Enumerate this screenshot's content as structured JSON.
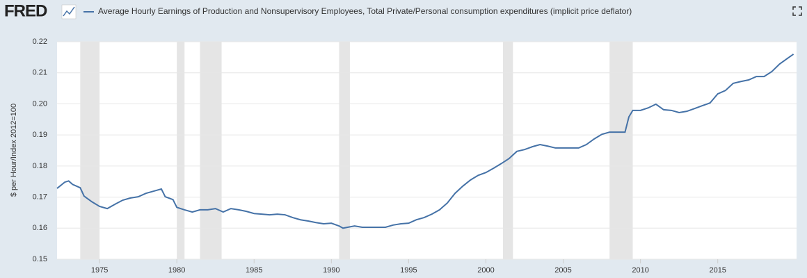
{
  "logo": "FRED",
  "chart_data": {
    "type": "line",
    "title": "Average Hourly Earnings of Production and Nonsupervisory Employees, Total Private/Personal consumption expenditures (implicit price deflator)",
    "ylabel": "$ per Hour/Index 2012=100",
    "xlim": [
      1972.25,
      2020.1
    ],
    "ylim": [
      0.15,
      0.22
    ],
    "xticks": [
      1975,
      1980,
      1985,
      1990,
      1995,
      2000,
      2005,
      2010,
      2015
    ],
    "yticks": [
      0.15,
      0.16,
      0.17,
      0.18,
      0.19,
      {
        "value": 0.2,
        "label": "0.20"
      },
      0.21,
      0.22
    ],
    "grid": true,
    "recession_color": "#e5e5e5",
    "recessions": [
      [
        1973.75,
        1975.0
      ],
      [
        1980.0,
        1980.5
      ],
      [
        1981.5,
        1982.9
      ],
      [
        1990.5,
        1991.2
      ],
      [
        2001.1,
        2001.75
      ],
      [
        2008.0,
        2009.5
      ]
    ],
    "series": [
      {
        "name": "Average Hourly Earnings of Production and Nonsupervisory Employees, Total Private/Personal consumption expenditures (implicit price deflator)",
        "color": "#4572a7",
        "x": [
          1972.25,
          1972.75,
          1973.0,
          1973.25,
          1973.75,
          1974.0,
          1974.5,
          1975.0,
          1975.5,
          1976.0,
          1976.5,
          1977.0,
          1977.5,
          1978.0,
          1978.5,
          1979.0,
          1979.25,
          1979.75,
          1980.0,
          1980.5,
          1981.0,
          1981.5,
          1982.0,
          1982.5,
          1983.0,
          1983.5,
          1984.0,
          1984.5,
          1985.0,
          1985.5,
          1986.0,
          1986.5,
          1987.0,
          1987.5,
          1988.0,
          1988.5,
          1989.0,
          1989.5,
          1990.0,
          1990.5,
          1990.75,
          1991.5,
          1992.0,
          1992.5,
          1993.0,
          1993.5,
          1994.0,
          1994.5,
          1995.0,
          1995.5,
          1996.0,
          1996.5,
          1997.0,
          1997.5,
          1998.0,
          1998.5,
          1999.0,
          1999.5,
          2000.0,
          2000.5,
          2001.0,
          2001.5,
          2002.0,
          2002.5,
          2003.0,
          2003.5,
          2004.0,
          2004.5,
          2005.0,
          2005.5,
          2006.0,
          2006.5,
          2007.0,
          2007.5,
          2008.0,
          2008.5,
          2009.0,
          2009.25,
          2009.5,
          2010.0,
          2010.5,
          2011.0,
          2011.5,
          2012.0,
          2012.5,
          2013.0,
          2013.5,
          2014.0,
          2014.5,
          2015.0,
          2015.5,
          2016.0,
          2016.5,
          2017.0,
          2017.5,
          2018.0,
          2018.5,
          2019.0,
          2019.5,
          2019.9
        ],
        "values": [
          0.1728,
          0.1748,
          0.1752,
          0.1741,
          0.173,
          0.1703,
          0.1685,
          0.167,
          0.1663,
          0.1677,
          0.169,
          0.1697,
          0.1701,
          0.1712,
          0.1719,
          0.1726,
          0.1701,
          0.1692,
          0.1667,
          0.1659,
          0.1652,
          0.1659,
          0.1659,
          0.1663,
          0.1652,
          0.1663,
          0.1659,
          0.1654,
          0.1647,
          0.1645,
          0.1643,
          0.1645,
          0.1643,
          0.1634,
          0.1627,
          0.1623,
          0.1618,
          0.1614,
          0.1616,
          0.1607,
          0.16,
          0.1607,
          0.1603,
          0.1603,
          0.1603,
          0.1603,
          0.161,
          0.1614,
          0.1616,
          0.1627,
          0.1634,
          0.1645,
          0.1659,
          0.1681,
          0.1712,
          0.1735,
          0.1755,
          0.177,
          0.1779,
          0.1793,
          0.1808,
          0.1824,
          0.1847,
          0.1853,
          0.1862,
          0.1869,
          0.1864,
          0.1858,
          0.1858,
          0.1858,
          0.1858,
          0.1869,
          0.1887,
          0.1902,
          0.1909,
          0.1909,
          0.1909,
          0.1958,
          0.1979,
          0.1979,
          0.1987,
          0.1999,
          0.1981,
          0.1979,
          0.1972,
          0.1976,
          0.1985,
          0.1994,
          0.2003,
          0.2032,
          0.2043,
          0.2066,
          0.2072,
          0.2077,
          0.2088,
          0.2088,
          0.2104,
          0.2128,
          0.2146,
          0.216
        ]
      }
    ]
  }
}
